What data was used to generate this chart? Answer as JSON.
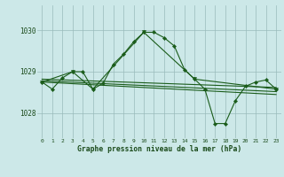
{
  "background_color": "#cce8e8",
  "grid_color": "#99bbbb",
  "line_color": "#1a5c1a",
  "text_color": "#1a4a1a",
  "title": "Graphe pression niveau de la mer (hPa)",
  "xlabel_ticks": [
    "0",
    "1",
    "2",
    "3",
    "4",
    "5",
    "6",
    "7",
    "8",
    "9",
    "10",
    "11",
    "12",
    "13",
    "14",
    "15",
    "16",
    "17",
    "18",
    "19",
    "20",
    "21",
    "22",
    "23"
  ],
  "yticks": [
    1028,
    1029,
    1030
  ],
  "ylim": [
    1027.4,
    1030.6
  ],
  "xlim": [
    -0.5,
    23.5
  ],
  "series1_y": [
    1028.75,
    1028.58,
    1028.85,
    1029.0,
    1029.0,
    1028.58,
    1028.72,
    1029.18,
    1029.42,
    1029.72,
    1029.95,
    1029.95,
    1029.82,
    1029.62,
    1029.05,
    1028.82,
    1028.58,
    1027.75,
    1027.75,
    1028.3,
    1028.65,
    1028.75,
    1028.8,
    1028.58
  ],
  "series2_x": [
    0,
    3,
    5,
    10,
    15,
    23
  ],
  "series2_y": [
    1028.75,
    1029.0,
    1028.58,
    1029.95,
    1028.82,
    1028.58
  ],
  "series3_x": [
    0,
    23
  ],
  "series3_y": [
    1028.82,
    1028.62
  ],
  "series4_x": [
    0,
    23
  ],
  "series4_y": [
    1028.78,
    1028.52
  ],
  "series5_x": [
    0,
    23
  ],
  "series5_y": [
    1028.75,
    1028.45
  ]
}
